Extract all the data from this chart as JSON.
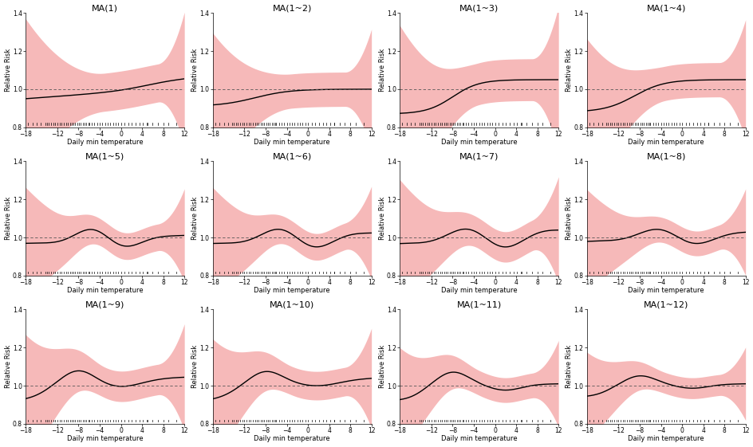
{
  "titles": [
    "MA(1)",
    "MA(1~2)",
    "MA(1~3)",
    "MA(1~4)",
    "MA(1~5)",
    "MA(1~6)",
    "MA(1~7)",
    "MA(1~8)",
    "MA(1~9)",
    "MA(1~10)",
    "MA(1~11)",
    "MA(1~12)"
  ],
  "xlabel": "Daily min temperature",
  "ylabel": "Relative Risk",
  "xlim": [
    -18,
    12
  ],
  "ylim": [
    0.8,
    1.4
  ],
  "xticks": [
    -18,
    -12,
    -8,
    -4,
    0,
    4,
    8,
    12
  ],
  "yticks": [
    0.8,
    1.0,
    1.2,
    1.4
  ],
  "ref_line_y": 1.0,
  "band_color": "#F08080",
  "band_alpha": 0.55,
  "line_color": "#000000",
  "background_color": "#ffffff",
  "title_fontsize": 8,
  "label_fontsize": 6,
  "tick_fontsize": 5.5
}
